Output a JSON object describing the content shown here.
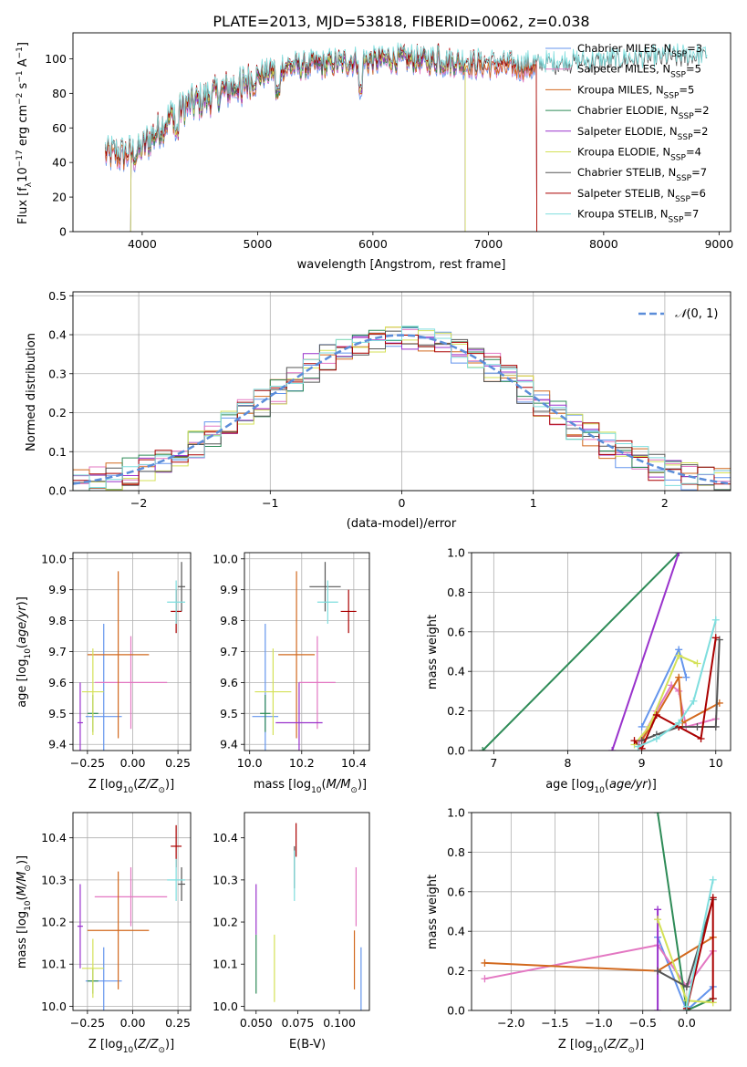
{
  "figure_title": "PLATE=2013, MJD=53818, FIBERID=0062, z=0.038",
  "colors": {
    "Chabrier MILES": "#6495ed",
    "Salpeter MILES": "#e377c2",
    "Kroupa MILES": "#d2691e",
    "Chabrier ELODIE": "#2e8b57",
    "Salpeter ELODIE": "#9932cc",
    "Kroupa ELODIE": "#d4e157",
    "Chabrier STELIB": "#555555",
    "Salpeter STELIB": "#aa0000",
    "Kroupa STELIB": "#7fdede"
  },
  "chart_data": [
    {
      "id": "spectrum",
      "type": "line",
      "xlabel": "wavelength [Angstrom, rest frame]",
      "ylabel": "Flux [f_λ 10^-17 erg cm^-2 s^-1 A^-1]",
      "xlim": [
        3400,
        9100
      ],
      "ylim": [
        0,
        115
      ],
      "xticks": [
        4000,
        5000,
        6000,
        7000,
        8000,
        9000
      ],
      "yticks": [
        0,
        20,
        40,
        60,
        80,
        100
      ],
      "legend_position": "right",
      "grid": false,
      "series": [
        {
          "name": "Chabrier MILES",
          "nssp": "3",
          "xmin": 3680,
          "xmax": 7420
        },
        {
          "name": "Salpeter MILES",
          "nssp": "5",
          "xmin": 3680,
          "xmax": 7420
        },
        {
          "name": "Kroupa MILES",
          "nssp": "5",
          "xmin": 3680,
          "xmax": 7420
        },
        {
          "name": "Chabrier ELODIE",
          "nssp": "2",
          "xmin": 3900,
          "xmax": 6800
        },
        {
          "name": "Salpeter ELODIE",
          "nssp": "2",
          "xmin": 3900,
          "xmax": 6800
        },
        {
          "name": "Kroupa ELODIE",
          "nssp": "4",
          "xmin": 3900,
          "xmax": 6800
        },
        {
          "name": "Chabrier STELIB",
          "nssp": "7",
          "xmin": 3680,
          "xmax": 8900
        },
        {
          "name": "Salpeter STELIB",
          "nssp": "6",
          "xmin": 3680,
          "xmax": 7420
        },
        {
          "name": "Kroupa STELIB",
          "nssp": "7",
          "xmin": 3680,
          "xmax": 8900
        }
      ]
    },
    {
      "id": "residuals",
      "type": "histogram",
      "xlabel": "(data-model)/error",
      "ylabel": "Normed distribution",
      "xlim": [
        -2.5,
        2.5
      ],
      "ylim": [
        0,
        0.51
      ],
      "xticks": [
        -2,
        -1,
        0,
        1,
        2
      ],
      "yticks": [
        0.0,
        0.1,
        0.2,
        0.3,
        0.4,
        0.5
      ],
      "grid": true,
      "bin_width": 0.125,
      "legend": [
        {
          "label": "N(0,1)",
          "style": "dashed",
          "color": "#5b8dd9"
        }
      ],
      "reference_curve": "normal(0,1)"
    },
    {
      "id": "age_vs_Z",
      "type": "errorbar",
      "xlabel": "Z [log10(Z/Z⊙)]",
      "ylabel": "age [log10(age/yr)]",
      "xlim": [
        -0.33,
        0.32
      ],
      "ylim": [
        9.38,
        10.02
      ],
      "xticks": [
        -0.25,
        0.0,
        0.25
      ],
      "yticks": [
        9.4,
        9.5,
        9.6,
        9.7,
        9.8,
        9.9,
        10.0
      ],
      "grid": true,
      "points": [
        {
          "series": "Chabrier MILES",
          "x": -0.16,
          "y": 9.49,
          "xerr": 0.1,
          "yerr": 0.3
        },
        {
          "series": "Salpeter MILES",
          "x": -0.01,
          "y": 9.6,
          "xerr": 0.2,
          "yerr": 0.15
        },
        {
          "series": "Kroupa MILES",
          "x": -0.08,
          "y": 9.69,
          "xerr": 0.17,
          "yerr": 0.27
        },
        {
          "series": "Chabrier ELODIE",
          "x": -0.22,
          "y": 9.5,
          "xerr": 0.03,
          "yerr": 0.06
        },
        {
          "series": "Salpeter ELODIE",
          "x": -0.29,
          "y": 9.47,
          "xerr": 0.015,
          "yerr": 0.13
        },
        {
          "series": "Kroupa ELODIE",
          "x": -0.22,
          "y": 9.57,
          "xerr": 0.06,
          "yerr": 0.14
        },
        {
          "series": "Chabrier STELIB",
          "x": 0.27,
          "y": 9.91,
          "xerr": 0.02,
          "yerr": 0.08
        },
        {
          "series": "Salpeter STELIB",
          "x": 0.24,
          "y": 9.83,
          "xerr": 0.03,
          "yerr": 0.07
        },
        {
          "series": "Kroupa STELIB",
          "x": 0.24,
          "y": 9.86,
          "xerr": 0.05,
          "yerr": 0.07
        }
      ]
    },
    {
      "id": "age_vs_mass",
      "type": "errorbar",
      "xlabel": "mass [log10(M/M⊙)]",
      "ylabel": "",
      "xlim": [
        9.98,
        10.46
      ],
      "ylim": [
        9.38,
        10.02
      ],
      "xticks": [
        10.0,
        10.2,
        10.4
      ],
      "yticks": [
        9.4,
        9.5,
        9.6,
        9.7,
        9.8,
        9.9,
        10.0
      ],
      "grid": true,
      "points": [
        {
          "series": "Chabrier MILES",
          "x": 10.06,
          "y": 9.49,
          "xerr": 0.05,
          "yerr": 0.3
        },
        {
          "series": "Salpeter MILES",
          "x": 10.26,
          "y": 9.6,
          "xerr": 0.07,
          "yerr": 0.15
        },
        {
          "series": "Kroupa MILES",
          "x": 10.18,
          "y": 9.69,
          "xerr": 0.07,
          "yerr": 0.27
        },
        {
          "series": "Chabrier ELODIE",
          "x": 10.06,
          "y": 9.5,
          "xerr": 0.02,
          "yerr": 0.06
        },
        {
          "series": "Salpeter ELODIE",
          "x": 10.19,
          "y": 9.47,
          "xerr": 0.09,
          "yerr": 0.13
        },
        {
          "series": "Kroupa ELODIE",
          "x": 10.09,
          "y": 9.57,
          "xerr": 0.07,
          "yerr": 0.14
        },
        {
          "series": "Chabrier STELIB",
          "x": 10.29,
          "y": 9.91,
          "xerr": 0.06,
          "yerr": 0.08
        },
        {
          "series": "Salpeter STELIB",
          "x": 10.38,
          "y": 9.83,
          "xerr": 0.03,
          "yerr": 0.07
        },
        {
          "series": "Kroupa STELIB",
          "x": 10.3,
          "y": 9.86,
          "xerr": 0.04,
          "yerr": 0.07
        }
      ]
    },
    {
      "id": "weight_vs_age",
      "type": "line",
      "xlabel": "age [log10(age/yr)]",
      "ylabel": "mass weight",
      "xlim": [
        6.7,
        10.2
      ],
      "ylim": [
        0,
        1
      ],
      "xticks": [
        7,
        8,
        9,
        10
      ],
      "yticks": [
        0.0,
        0.2,
        0.4,
        0.6,
        0.8,
        1.0
      ],
      "grid": true,
      "series": [
        {
          "name": "Chabrier MILES",
          "x": [
            9.0,
            9.5,
            9.6
          ],
          "y": [
            0.12,
            0.51,
            0.37
          ]
        },
        {
          "name": "Salpeter MILES",
          "x": [
            8.95,
            9.2,
            9.4,
            9.5,
            9.6,
            10.0
          ],
          "y": [
            0.03,
            0.2,
            0.33,
            0.3,
            0.12,
            0.16
          ]
        },
        {
          "name": "Kroupa MILES",
          "x": [
            9.0,
            9.5,
            9.55,
            10.05
          ],
          "y": [
            0.05,
            0.37,
            0.14,
            0.24
          ]
        },
        {
          "name": "Chabrier ELODIE",
          "x": [
            6.85,
            9.5
          ],
          "y": [
            0.0,
            1.0
          ]
        },
        {
          "name": "Salpeter ELODIE",
          "x": [
            8.6,
            9.5
          ],
          "y": [
            0.0,
            1.0
          ]
        },
        {
          "name": "Kroupa ELODIE",
          "x": [
            8.9,
            9.1,
            9.5,
            9.75
          ],
          "y": [
            0.03,
            0.12,
            0.48,
            0.44
          ]
        },
        {
          "name": "Chabrier STELIB",
          "x": [
            9.0,
            9.2,
            9.5,
            9.75,
            10.0,
            10.05
          ],
          "y": [
            0.05,
            0.08,
            0.12,
            0.12,
            0.12,
            0.56
          ]
        },
        {
          "name": "Salpeter STELIB",
          "x": [
            8.9,
            9.0,
            9.2,
            9.5,
            9.8,
            10.0
          ],
          "y": [
            0.05,
            0.01,
            0.18,
            0.12,
            0.06,
            0.57
          ]
        },
        {
          "name": "Kroupa STELIB",
          "x": [
            8.95,
            9.2,
            9.5,
            9.7,
            10.0
          ],
          "y": [
            0.02,
            0.06,
            0.14,
            0.25,
            0.66
          ]
        }
      ]
    },
    {
      "id": "mass_vs_Z",
      "type": "errorbar",
      "xlabel": "Z [log10(Z/Z⊙)]",
      "ylabel": "mass [log10(M/M⊙)]",
      "xlim": [
        -0.33,
        0.32
      ],
      "ylim": [
        9.99,
        10.46
      ],
      "xticks": [
        -0.25,
        0.0,
        0.25
      ],
      "yticks": [
        10.0,
        10.1,
        10.2,
        10.3,
        10.4
      ],
      "grid": true,
      "points": [
        {
          "series": "Chabrier MILES",
          "x": -0.16,
          "y": 10.06,
          "xerr": 0.1,
          "yerr": 0.08
        },
        {
          "series": "Salpeter MILES",
          "x": -0.01,
          "y": 10.26,
          "xerr": 0.2,
          "yerr": 0.07
        },
        {
          "series": "Kroupa MILES",
          "x": -0.08,
          "y": 10.18,
          "xerr": 0.17,
          "yerr": 0.14
        },
        {
          "series": "Chabrier ELODIE",
          "x": -0.22,
          "y": 10.06,
          "xerr": 0.03,
          "yerr": 0.03
        },
        {
          "series": "Salpeter ELODIE",
          "x": -0.29,
          "y": 10.19,
          "xerr": 0.015,
          "yerr": 0.1
        },
        {
          "series": "Kroupa ELODIE",
          "x": -0.22,
          "y": 10.09,
          "xerr": 0.06,
          "yerr": 0.07
        },
        {
          "series": "Chabrier STELIB",
          "x": 0.27,
          "y": 10.29,
          "xerr": 0.02,
          "yerr": 0.04
        },
        {
          "series": "Salpeter STELIB",
          "x": 0.24,
          "y": 10.38,
          "xerr": 0.03,
          "yerr": 0.05
        },
        {
          "series": "Kroupa STELIB",
          "x": 0.24,
          "y": 10.3,
          "xerr": 0.05,
          "yerr": 0.05
        }
      ]
    },
    {
      "id": "mass_vs_ebv",
      "type": "errorbar",
      "xlabel": "E(B-V)",
      "ylabel": "",
      "xlim": [
        0.043,
        0.118
      ],
      "ylim": [
        9.99,
        10.46
      ],
      "xticks": [
        0.05,
        0.075,
        0.1
      ],
      "yticks": [
        10.0,
        10.1,
        10.2,
        10.3,
        10.4
      ],
      "grid": false,
      "points": [
        {
          "series": "Chabrier MILES",
          "x": 0.113,
          "y": 10.06,
          "xerr": 0,
          "yerr": 0.08
        },
        {
          "series": "Salpeter MILES",
          "x": 0.11,
          "y": 10.26,
          "xerr": 0,
          "yerr": 0.07
        },
        {
          "series": "Kroupa MILES",
          "x": 0.109,
          "y": 10.11,
          "xerr": 0,
          "yerr": 0.07
        },
        {
          "series": "Chabrier ELODIE",
          "x": 0.05,
          "y": 10.1,
          "xerr": 0,
          "yerr": 0.07
        },
        {
          "series": "Salpeter ELODIE",
          "x": 0.05,
          "y": 10.23,
          "xerr": 0,
          "yerr": 0.06
        },
        {
          "series": "Kroupa ELODIE",
          "x": 0.061,
          "y": 10.09,
          "xerr": 0,
          "yerr": 0.08
        },
        {
          "series": "Chabrier STELIB",
          "x": 0.073,
          "y": 10.33,
          "xerr": 0,
          "yerr": 0.05
        },
        {
          "series": "Salpeter STELIB",
          "x": 0.074,
          "y": 10.395,
          "xerr": 0,
          "yerr": 0.04
        },
        {
          "series": "Kroupa STELIB",
          "x": 0.073,
          "y": 10.31,
          "xerr": 0,
          "yerr": 0.06
        }
      ]
    },
    {
      "id": "weight_vs_Z",
      "type": "line",
      "xlabel": "Z [log10(Z/Z⊙)]",
      "ylabel": "mass weight",
      "xlim": [
        -2.45,
        0.5
      ],
      "ylim": [
        0,
        1
      ],
      "xticks": [
        -2.0,
        -1.5,
        -1.0,
        -0.5,
        0.0
      ],
      "yticks": [
        0.0,
        0.2,
        0.4,
        0.6,
        0.8,
        1.0
      ],
      "grid": true,
      "series": [
        {
          "name": "Chabrier MILES",
          "x": [
            -0.33,
            0.0,
            0.3
          ],
          "y": [
            0.37,
            0.0,
            0.12
          ]
        },
        {
          "name": "Salpeter MILES",
          "x": [
            -2.3,
            -0.33,
            0.0,
            0.3
          ],
          "y": [
            0.16,
            0.33,
            0.12,
            0.3
          ]
        },
        {
          "name": "Kroupa MILES",
          "x": [
            -2.3,
            -0.33,
            0.3
          ],
          "y": [
            0.24,
            0.2,
            0.37
          ]
        },
        {
          "name": "Chabrier ELODIE",
          "x": [
            -0.33,
            0.0,
            0.3
          ],
          "y": [
            1.0,
            0.0,
            0.06
          ]
        },
        {
          "name": "Salpeter ELODIE",
          "x": [
            -0.33,
            -0.33
          ],
          "y": [
            0.0,
            0.51
          ]
        },
        {
          "name": "Kroupa ELODIE",
          "x": [
            -0.33,
            0.0,
            0.3
          ],
          "y": [
            0.46,
            0.05,
            0.04
          ]
        },
        {
          "name": "Chabrier STELIB",
          "x": [
            -0.33,
            0.0,
            0.3
          ],
          "y": [
            0.2,
            0.12,
            0.56
          ]
        },
        {
          "name": "Salpeter STELIB",
          "x": [
            0.0,
            0.3,
            0.3
          ],
          "y": [
            0.01,
            0.57,
            0.06
          ]
        },
        {
          "name": "Kroupa STELIB",
          "x": [
            0.0,
            0.3
          ],
          "y": [
            0.02,
            0.66
          ]
        }
      ]
    }
  ]
}
